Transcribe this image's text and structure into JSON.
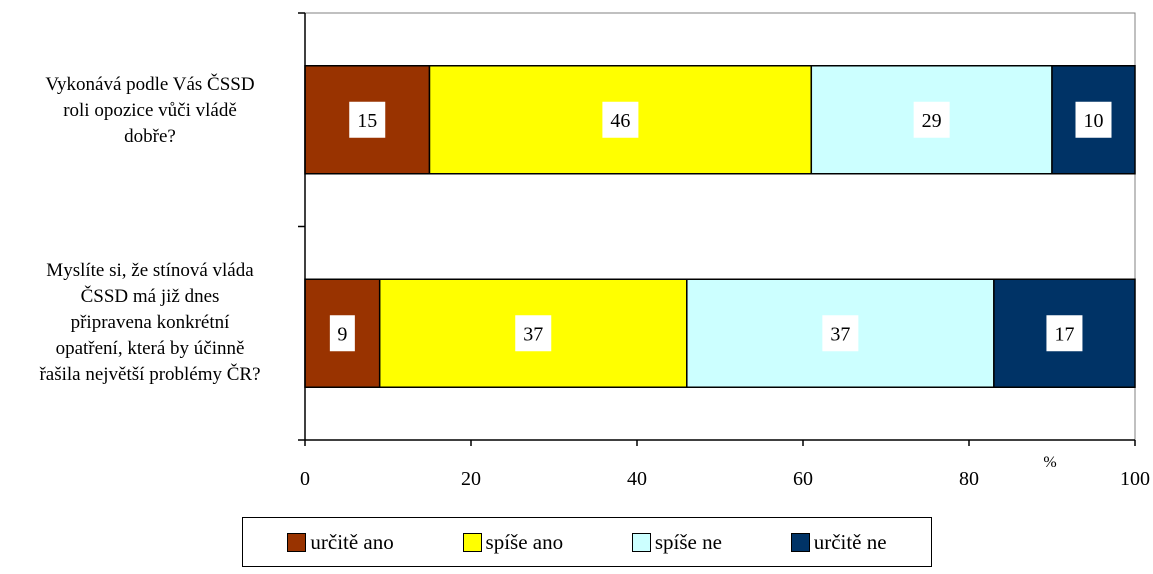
{
  "chart_data": {
    "type": "bar",
    "orientation": "horizontal",
    "stacked": true,
    "categories": [
      "Vykonává podle Vás ČSSD roli opozice vůči vládě dobře?",
      "Myslíte si, že stínová vláda ČSSD má již dnes připravena konkrétní opatření, která by účinně řašila největší problémy ČR?"
    ],
    "category_lines": [
      [
        "Vykonává podle Vás ČSSD",
        "roli opozice vůči vládě",
        "dobře?"
      ],
      [
        "Myslíte si, že stínová vláda",
        "ČSSD má již dnes",
        "připravena konkrétní",
        "opatření, která by účinně",
        "řašila největší problémy ČR?"
      ]
    ],
    "series": [
      {
        "name": "určitě ano",
        "color": "#993300",
        "values": [
          15,
          9
        ]
      },
      {
        "name": "spíše ano",
        "color": "#ffff00",
        "values": [
          46,
          37
        ]
      },
      {
        "name": "spíše ne",
        "color": "#ccffff",
        "values": [
          29,
          37
        ]
      },
      {
        "name": "určitě ne",
        "color": "#003366",
        "values": [
          10,
          17
        ]
      }
    ],
    "x_ticks": [
      "0",
      "20",
      "40",
      "60",
      "80",
      "100"
    ],
    "xlim": [
      0,
      100
    ],
    "xunit": "%",
    "legend_position": "bottom",
    "grid": false
  }
}
